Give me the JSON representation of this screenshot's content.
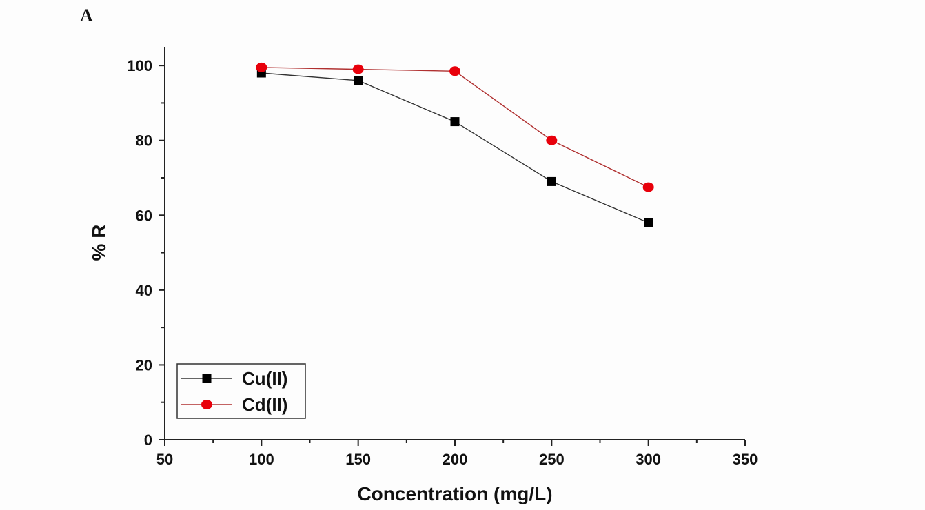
{
  "panel_label": "A",
  "chart_data": {
    "type": "line",
    "title": "",
    "xlabel": "Concentration (mg/L)",
    "ylabel": "% R",
    "xlim": [
      50,
      350
    ],
    "ylim": [
      0,
      105
    ],
    "x_ticks": [
      50,
      100,
      150,
      200,
      250,
      300,
      350
    ],
    "y_ticks": [
      0,
      20,
      40,
      60,
      80,
      100
    ],
    "x_tick_labels": [
      "50",
      "100",
      "150",
      "200",
      "250",
      "300",
      "350"
    ],
    "y_tick_labels": [
      "0",
      "20",
      "40",
      "60",
      "80",
      "100"
    ],
    "x_minor_step": 25,
    "y_minor_step": 10,
    "legend_position": "bottom-left",
    "series": [
      {
        "name": "Cu(II)",
        "marker": "square",
        "marker_color": "#000000",
        "line_color": "#333333",
        "x": [
          100,
          150,
          200,
          250,
          300
        ],
        "y": [
          98,
          96,
          85,
          69,
          58
        ]
      },
      {
        "name": "Cd(II)",
        "marker": "circle",
        "marker_color": "#e8000b",
        "line_color": "#b03030",
        "x": [
          100,
          150,
          200,
          250,
          300
        ],
        "y": [
          99.5,
          99,
          98.5,
          80,
          67.5
        ]
      }
    ]
  }
}
